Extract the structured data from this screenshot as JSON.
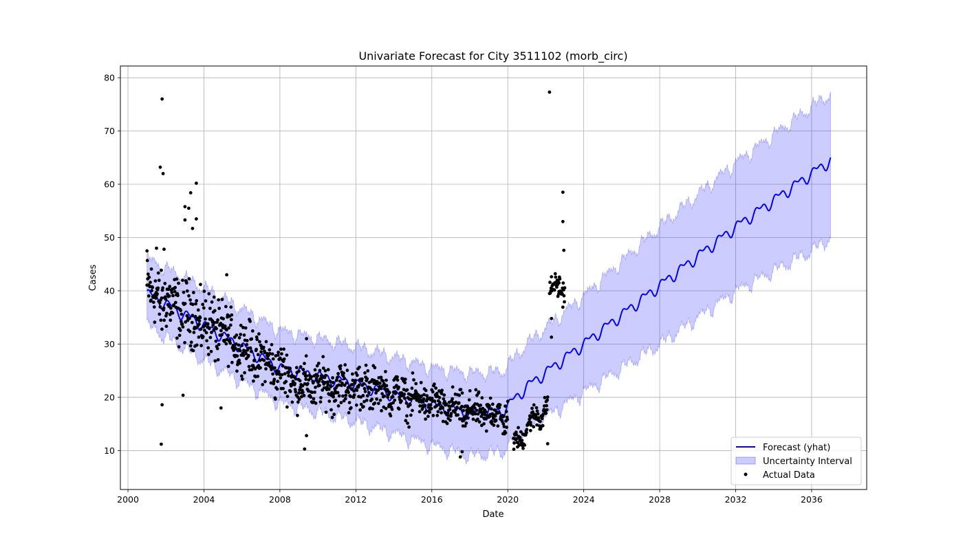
{
  "chart_data": {
    "type": "line",
    "title": "Univariate Forecast for City 3511102 (morb_circ)",
    "xlabel": "Date",
    "ylabel": "Cases",
    "xlim": [
      1999.6,
      2038.9
    ],
    "ylim": [
      2.7,
      82.2
    ],
    "x_ticks": [
      2000,
      2004,
      2008,
      2012,
      2016,
      2020,
      2024,
      2028,
      2032,
      2036
    ],
    "x_tick_labels": [
      "2000",
      "2004",
      "2008",
      "2012",
      "2016",
      "2020",
      "2024",
      "2028",
      "2032",
      "2036"
    ],
    "y_ticks": [
      10,
      20,
      30,
      40,
      50,
      60,
      70,
      80
    ],
    "y_tick_labels": [
      "10",
      "20",
      "30",
      "40",
      "50",
      "60",
      "70",
      "80"
    ],
    "grid": true,
    "legend_position": "lower-right",
    "colors": {
      "forecast": "#0000ff",
      "interval": "#8080ff",
      "actual": "#000000",
      "grid": "#b0b0b0"
    },
    "legend": [
      {
        "key": "forecast",
        "label": "Forecast (yhat)"
      },
      {
        "key": "interval",
        "label": "Uncertainty Interval"
      },
      {
        "key": "actual",
        "label": "Actual Data"
      }
    ],
    "forecast_trend": {
      "x": [
        2001.0,
        2004.0,
        2008.0,
        2012.0,
        2016.0,
        2018.0,
        2019.7,
        2021.0,
        2024.0,
        2028.0,
        2032.0,
        2036.0,
        2037.0
      ],
      "yhat": [
        39.5,
        33.5,
        25.5,
        22.5,
        18.5,
        17.0,
        17.3,
        22.0,
        30.0,
        41.0,
        52.0,
        62.0,
        64.5
      ],
      "lower": [
        33.5,
        27.0,
        19.0,
        15.5,
        11.0,
        9.0,
        9.8,
        14.0,
        21.0,
        30.0,
        40.0,
        47.5,
        50.0
      ],
      "upper": [
        46.0,
        40.5,
        32.5,
        29.5,
        25.5,
        24.5,
        24.8,
        30.0,
        39.0,
        52.0,
        64.0,
        74.5,
        77.0
      ]
    },
    "seasonal_amplitude": 1.2,
    "actual_data": {
      "segments": [
        {
          "from": 2001.0,
          "to": 2005.0,
          "mean_start": 40.0,
          "mean_end": 32.0,
          "spread": 5.0
        },
        {
          "from": 2005.0,
          "to": 2009.0,
          "mean_start": 32.0,
          "mean_end": 22.5,
          "spread": 4.0
        },
        {
          "from": 2009.0,
          "to": 2013.0,
          "mean_start": 22.5,
          "mean_end": 21.5,
          "spread": 3.5
        },
        {
          "from": 2013.0,
          "to": 2016.5,
          "mean_start": 21.5,
          "mean_end": 18.5,
          "spread": 2.8
        },
        {
          "from": 2016.5,
          "to": 2020.0,
          "mean_start": 18.0,
          "mean_end": 16.5,
          "spread": 2.6
        },
        {
          "from": 2020.3,
          "to": 2021.2,
          "mean_start": 11.0,
          "mean_end": 15.0,
          "spread": 1.6
        },
        {
          "from": 2021.2,
          "to": 2022.1,
          "mean_start": 15.5,
          "mean_end": 18.0,
          "spread": 2.0
        },
        {
          "from": 2022.2,
          "to": 2022.7,
          "mean_start": 40.0,
          "mean_end": 41.5,
          "spread": 1.6
        },
        {
          "from": 2022.7,
          "to": 2023.0,
          "mean_start": 42.5,
          "mean_end": 39.0,
          "spread": 1.8
        }
      ],
      "outliers": [
        {
          "x": 2001.8,
          "y": 76.0
        },
        {
          "x": 2001.7,
          "y": 63.2
        },
        {
          "x": 2001.85,
          "y": 62.0
        },
        {
          "x": 2001.75,
          "y": 11.2
        },
        {
          "x": 2001.8,
          "y": 18.6
        },
        {
          "x": 2003.6,
          "y": 60.2
        },
        {
          "x": 2003.3,
          "y": 58.4
        },
        {
          "x": 2003.0,
          "y": 55.8
        },
        {
          "x": 2003.2,
          "y": 55.5
        },
        {
          "x": 2003.6,
          "y": 53.5
        },
        {
          "x": 2003.0,
          "y": 53.3
        },
        {
          "x": 2003.4,
          "y": 51.7
        },
        {
          "x": 2001.0,
          "y": 47.5
        },
        {
          "x": 2001.5,
          "y": 48.0
        },
        {
          "x": 2001.9,
          "y": 47.8
        },
        {
          "x": 2002.9,
          "y": 20.4
        },
        {
          "x": 2004.9,
          "y": 18.0
        },
        {
          "x": 2005.2,
          "y": 43.0
        },
        {
          "x": 2009.3,
          "y": 10.3
        },
        {
          "x": 2009.4,
          "y": 12.8
        },
        {
          "x": 2009.4,
          "y": 31.0
        },
        {
          "x": 2017.5,
          "y": 8.8
        },
        {
          "x": 2017.6,
          "y": 9.8
        },
        {
          "x": 2022.2,
          "y": 77.3
        },
        {
          "x": 2022.9,
          "y": 58.5
        },
        {
          "x": 2022.9,
          "y": 53.0
        },
        {
          "x": 2022.95,
          "y": 47.6
        },
        {
          "x": 2022.1,
          "y": 11.3
        },
        {
          "x": 2022.3,
          "y": 31.3
        },
        {
          "x": 2022.3,
          "y": 34.8
        }
      ]
    }
  }
}
